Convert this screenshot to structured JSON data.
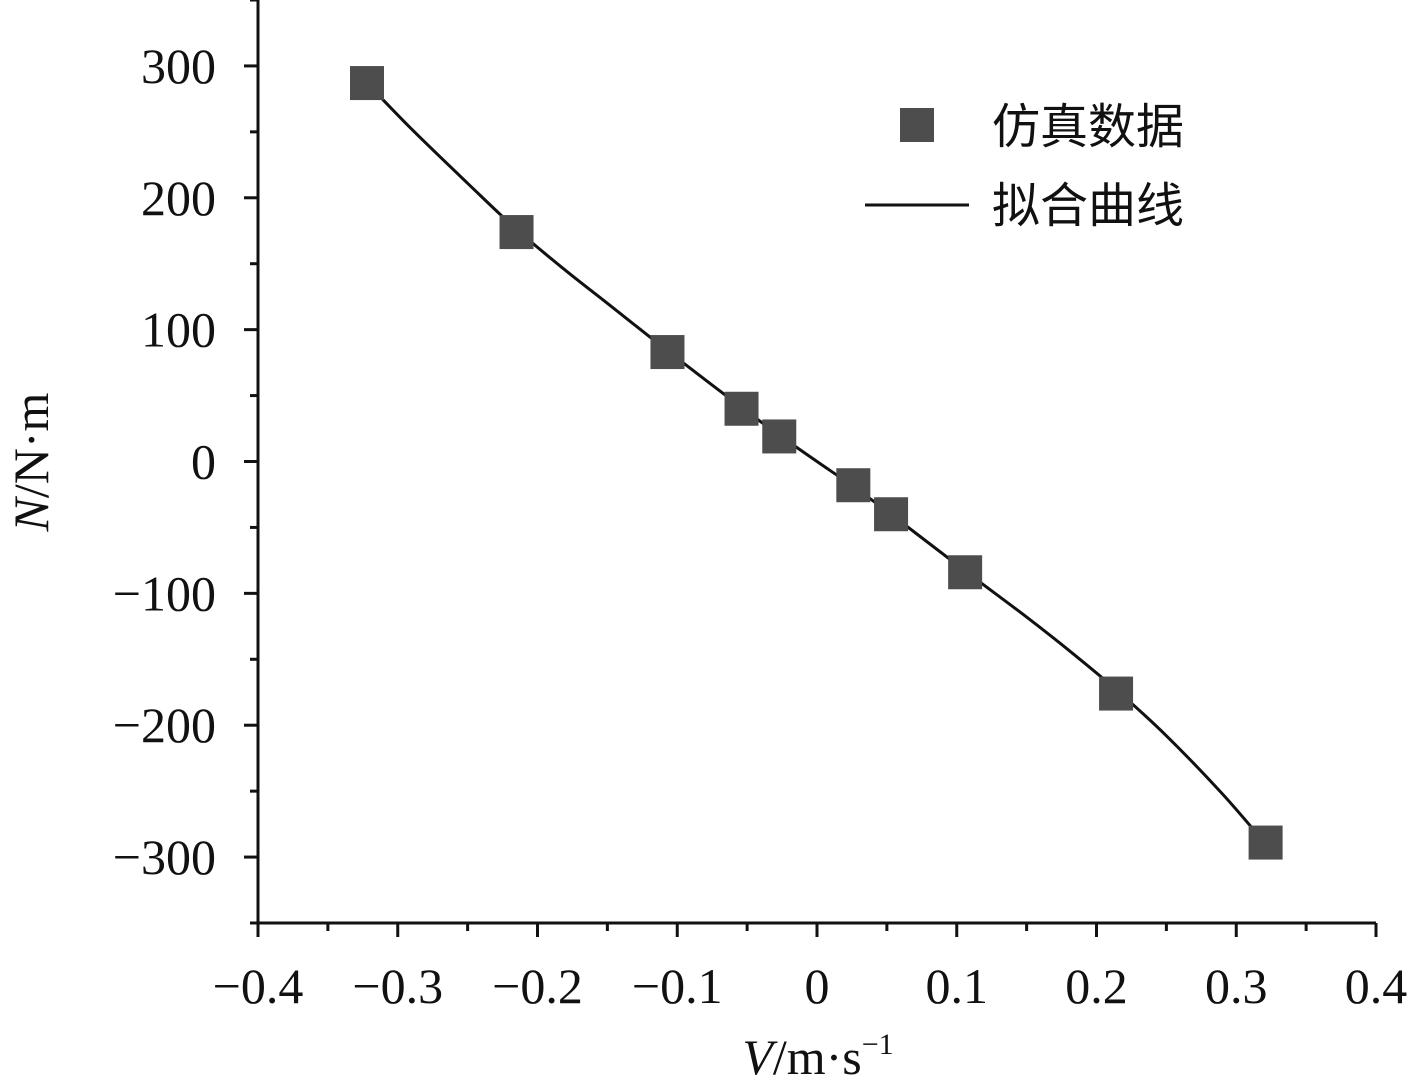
{
  "chart_data": {
    "type": "scatter",
    "title": "",
    "xlabel": {
      "var": "V",
      "unit": "/m·s",
      "sup": "−1"
    },
    "ylabel": {
      "var": "N",
      "unit": "/N·m"
    },
    "xlim": [
      -0.4,
      0.4
    ],
    "ylim": [
      -350,
      350
    ],
    "x_ticks": [
      -0.4,
      -0.3,
      -0.2,
      -0.1,
      0,
      0.1,
      0.2,
      0.3,
      0.4
    ],
    "x_tick_labels": [
      "−0.4",
      "−0.3",
      "−0.2",
      "−0.1",
      "0",
      "0.1",
      "0.2",
      "0.3",
      "0.4"
    ],
    "y_ticks": [
      300,
      200,
      100,
      0,
      -100,
      -200,
      -300
    ],
    "y_tick_labels": [
      "300",
      "200",
      "100",
      "0",
      "−100",
      "−200",
      "−300"
    ],
    "grid": false,
    "legend_position": "top-right",
    "series": [
      {
        "name": "仿真数据",
        "kind": "scatter",
        "marker": "square",
        "color": "#4d4d4d",
        "x": [
          -0.322,
          -0.215,
          -0.107,
          -0.054,
          -0.027,
          0.026,
          0.053,
          0.106,
          0.214,
          0.321
        ],
        "y": [
          287,
          174,
          83,
          40,
          19,
          -18,
          -40,
          -84,
          -176,
          -289
        ]
      },
      {
        "name": "拟合曲线",
        "kind": "line",
        "color": "#111111",
        "x": [
          -0.322,
          -0.29,
          -0.25,
          -0.215,
          -0.18,
          -0.15,
          -0.107,
          -0.054,
          -0.027,
          0,
          0.026,
          0.053,
          0.106,
          0.15,
          0.18,
          0.214,
          0.25,
          0.29,
          0.321
        ],
        "y": [
          287,
          252,
          211,
          176,
          145,
          120,
          84,
          41,
          20,
          0,
          -19,
          -40,
          -83,
          -118,
          -143,
          -173,
          -208,
          -252,
          -290
        ]
      }
    ]
  }
}
